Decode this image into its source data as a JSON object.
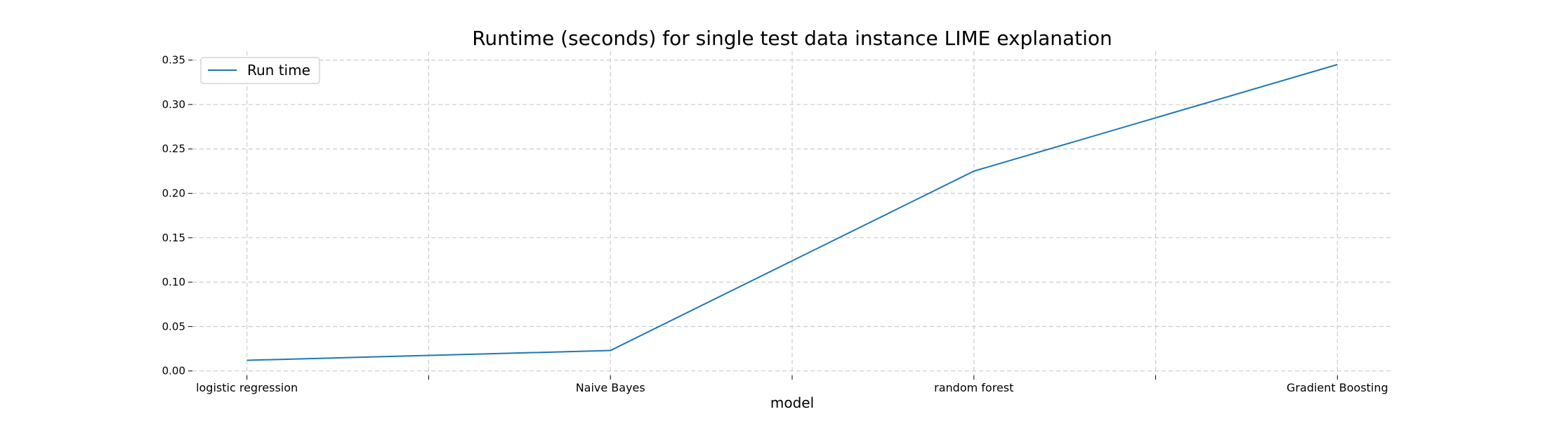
{
  "chart_data": {
    "type": "line",
    "title": "Runtime (seconds) for single test data instance LIME explanation",
    "xlabel": "model",
    "ylabel": "",
    "x": [
      0,
      1,
      2,
      3,
      4,
      5,
      6
    ],
    "x_tick_labels": [
      "logistic regression",
      "",
      "Naive Bayes",
      "",
      "random forest",
      "",
      "Gradient Boosting"
    ],
    "series": [
      {
        "name": "Run time",
        "values": [
          0.012,
          0.0175,
          0.023,
          0.124,
          0.225,
          0.285,
          0.345
        ],
        "color": "#1f77b4"
      }
    ],
    "xlim": [
      -0.3,
      6.3
    ],
    "ylim": [
      -0.005,
      0.36
    ],
    "y_ticks": [
      0.0,
      0.05,
      0.1,
      0.15,
      0.2,
      0.25,
      0.3,
      0.35
    ],
    "y_tick_labels": [
      "0.00",
      "0.05",
      "0.10",
      "0.15",
      "0.20",
      "0.25",
      "0.30",
      "0.35"
    ],
    "grid": true,
    "legend_position": "top-left"
  }
}
